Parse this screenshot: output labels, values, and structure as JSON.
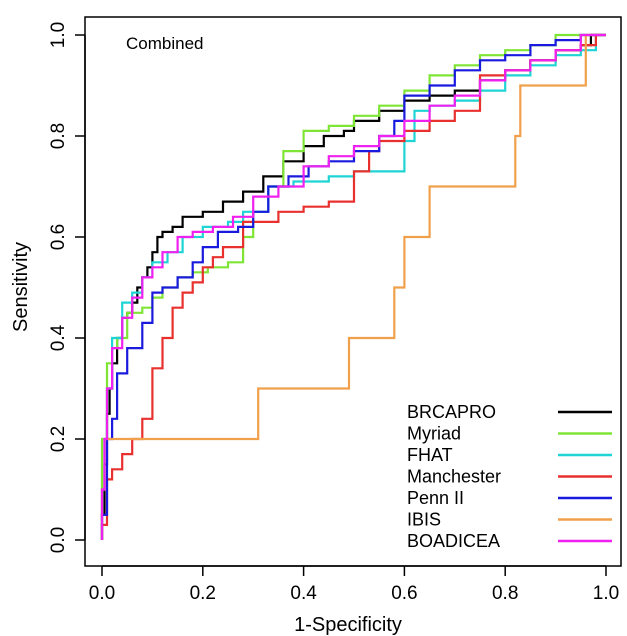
{
  "chart_data": {
    "type": "line",
    "title": "",
    "annotation": "Combined",
    "xlabel": "1-Specificity",
    "ylabel": "Sensitivity",
    "xlim": [
      0,
      1
    ],
    "ylim": [
      0,
      1
    ],
    "xticks": [
      "0.0",
      "0.2",
      "0.4",
      "0.6",
      "0.8",
      "1.0"
    ],
    "yticks": [
      "0.0",
      "0.2",
      "0.4",
      "0.6",
      "0.8",
      "1.0"
    ],
    "grid": false,
    "legend_position": "bottom-right",
    "series": [
      {
        "name": "BRCAPRO",
        "color": "#000000",
        "points": [
          [
            0,
            0
          ],
          [
            0.005,
            0.05
          ],
          [
            0.01,
            0.15
          ],
          [
            0.015,
            0.25
          ],
          [
            0.02,
            0.3
          ],
          [
            0.03,
            0.35
          ],
          [
            0.04,
            0.4
          ],
          [
            0.05,
            0.44
          ],
          [
            0.06,
            0.45
          ],
          [
            0.07,
            0.47
          ],
          [
            0.08,
            0.5
          ],
          [
            0.09,
            0.52
          ],
          [
            0.1,
            0.54
          ],
          [
            0.11,
            0.57
          ],
          [
            0.12,
            0.6
          ],
          [
            0.14,
            0.61
          ],
          [
            0.16,
            0.62
          ],
          [
            0.2,
            0.64
          ],
          [
            0.24,
            0.65
          ],
          [
            0.28,
            0.67
          ],
          [
            0.32,
            0.69
          ],
          [
            0.36,
            0.72
          ],
          [
            0.4,
            0.75
          ],
          [
            0.44,
            0.78
          ],
          [
            0.48,
            0.8
          ],
          [
            0.5,
            0.81
          ],
          [
            0.55,
            0.83
          ],
          [
            0.6,
            0.85
          ],
          [
            0.65,
            0.87
          ],
          [
            0.7,
            0.88
          ],
          [
            0.75,
            0.89
          ],
          [
            0.8,
            0.91
          ],
          [
            0.85,
            0.93
          ],
          [
            0.9,
            0.95
          ],
          [
            0.95,
            0.97
          ],
          [
            0.97,
            0.98
          ],
          [
            1,
            1
          ]
        ]
      },
      {
        "name": "Myriad",
        "color": "#7FE535",
        "points": [
          [
            0,
            0
          ],
          [
            0.01,
            0.2
          ],
          [
            0.02,
            0.35
          ],
          [
            0.03,
            0.38
          ],
          [
            0.05,
            0.4
          ],
          [
            0.08,
            0.45
          ],
          [
            0.1,
            0.46
          ],
          [
            0.12,
            0.48
          ],
          [
            0.15,
            0.5
          ],
          [
            0.18,
            0.52
          ],
          [
            0.21,
            0.53
          ],
          [
            0.25,
            0.54
          ],
          [
            0.28,
            0.55
          ],
          [
            0.3,
            0.6
          ],
          [
            0.33,
            0.65
          ],
          [
            0.36,
            0.7
          ],
          [
            0.4,
            0.77
          ],
          [
            0.45,
            0.81
          ],
          [
            0.5,
            0.82
          ],
          [
            0.55,
            0.84
          ],
          [
            0.6,
            0.86
          ],
          [
            0.65,
            0.89
          ],
          [
            0.7,
            0.92
          ],
          [
            0.75,
            0.94
          ],
          [
            0.8,
            0.96
          ],
          [
            0.85,
            0.97
          ],
          [
            0.9,
            0.98
          ],
          [
            1,
            1
          ]
        ]
      },
      {
        "name": "FHAT",
        "color": "#1FD4D4",
        "points": [
          [
            0,
            0
          ],
          [
            0.005,
            0.1
          ],
          [
            0.01,
            0.2
          ],
          [
            0.02,
            0.3
          ],
          [
            0.04,
            0.4
          ],
          [
            0.06,
            0.47
          ],
          [
            0.08,
            0.49
          ],
          [
            0.1,
            0.52
          ],
          [
            0.13,
            0.55
          ],
          [
            0.16,
            0.57
          ],
          [
            0.2,
            0.6
          ],
          [
            0.25,
            0.62
          ],
          [
            0.28,
            0.63
          ],
          [
            0.33,
            0.65
          ],
          [
            0.38,
            0.7
          ],
          [
            0.45,
            0.71
          ],
          [
            0.5,
            0.72
          ],
          [
            0.55,
            0.73
          ],
          [
            0.6,
            0.73
          ],
          [
            0.62,
            0.79
          ],
          [
            0.65,
            0.85
          ],
          [
            0.7,
            0.86
          ],
          [
            0.75,
            0.87
          ],
          [
            0.8,
            0.89
          ],
          [
            0.85,
            0.92
          ],
          [
            0.9,
            0.94
          ],
          [
            0.95,
            0.96
          ],
          [
            0.98,
            0.97
          ],
          [
            1,
            1
          ]
        ]
      },
      {
        "name": "Manchester",
        "color": "#E8312E",
        "points": [
          [
            0,
            0
          ],
          [
            0.01,
            0.03
          ],
          [
            0.02,
            0.12
          ],
          [
            0.04,
            0.14
          ],
          [
            0.06,
            0.17
          ],
          [
            0.08,
            0.2
          ],
          [
            0.1,
            0.24
          ],
          [
            0.12,
            0.34
          ],
          [
            0.14,
            0.4
          ],
          [
            0.16,
            0.46
          ],
          [
            0.18,
            0.49
          ],
          [
            0.2,
            0.51
          ],
          [
            0.22,
            0.54
          ],
          [
            0.24,
            0.56
          ],
          [
            0.28,
            0.58
          ],
          [
            0.35,
            0.63
          ],
          [
            0.4,
            0.65
          ],
          [
            0.45,
            0.66
          ],
          [
            0.5,
            0.67
          ],
          [
            0.53,
            0.73
          ],
          [
            0.55,
            0.77
          ],
          [
            0.6,
            0.79
          ],
          [
            0.65,
            0.81
          ],
          [
            0.7,
            0.83
          ],
          [
            0.75,
            0.85
          ],
          [
            0.8,
            0.92
          ],
          [
            0.85,
            0.93
          ],
          [
            0.9,
            0.95
          ],
          [
            0.95,
            0.97
          ],
          [
            0.98,
            0.98
          ],
          [
            1,
            1
          ]
        ]
      },
      {
        "name": "Penn II",
        "color": "#1A1ADE",
        "points": [
          [
            0,
            0
          ],
          [
            0.01,
            0.05
          ],
          [
            0.02,
            0.2
          ],
          [
            0.03,
            0.24
          ],
          [
            0.05,
            0.33
          ],
          [
            0.08,
            0.38
          ],
          [
            0.1,
            0.43
          ],
          [
            0.12,
            0.49
          ],
          [
            0.15,
            0.5
          ],
          [
            0.18,
            0.52
          ],
          [
            0.2,
            0.55
          ],
          [
            0.23,
            0.58
          ],
          [
            0.27,
            0.61
          ],
          [
            0.3,
            0.62
          ],
          [
            0.33,
            0.65
          ],
          [
            0.37,
            0.7
          ],
          [
            0.41,
            0.72
          ],
          [
            0.45,
            0.74
          ],
          [
            0.5,
            0.75
          ],
          [
            0.55,
            0.77
          ],
          [
            0.58,
            0.8
          ],
          [
            0.6,
            0.83
          ],
          [
            0.65,
            0.88
          ],
          [
            0.7,
            0.9
          ],
          [
            0.75,
            0.93
          ],
          [
            0.8,
            0.95
          ],
          [
            0.85,
            0.96
          ],
          [
            0.9,
            0.98
          ],
          [
            0.95,
            0.99
          ],
          [
            1,
            1
          ]
        ]
      },
      {
        "name": "IBIS",
        "color": "#F0A04A",
        "points": [
          [
            0,
            0
          ],
          [
            0.005,
            0.1
          ],
          [
            0.01,
            0.2
          ],
          [
            0.05,
            0.2
          ],
          [
            0.1,
            0.2
          ],
          [
            0.31,
            0.2
          ],
          [
            0.31,
            0.3
          ],
          [
            0.49,
            0.3
          ],
          [
            0.49,
            0.4
          ],
          [
            0.58,
            0.4
          ],
          [
            0.58,
            0.5
          ],
          [
            0.6,
            0.5
          ],
          [
            0.6,
            0.6
          ],
          [
            0.65,
            0.6
          ],
          [
            0.65,
            0.7
          ],
          [
            0.82,
            0.7
          ],
          [
            0.82,
            0.8
          ],
          [
            0.83,
            0.8
          ],
          [
            0.83,
            0.9
          ],
          [
            0.96,
            0.9
          ],
          [
            0.96,
            1.0
          ],
          [
            1,
            1
          ]
        ]
      },
      {
        "name": "BOADICEA",
        "color": "#F020F0",
        "points": [
          [
            0,
            0
          ],
          [
            0.005,
            0.1
          ],
          [
            0.01,
            0.2
          ],
          [
            0.02,
            0.3
          ],
          [
            0.04,
            0.38
          ],
          [
            0.06,
            0.44
          ],
          [
            0.08,
            0.48
          ],
          [
            0.1,
            0.52
          ],
          [
            0.12,
            0.54
          ],
          [
            0.15,
            0.57
          ],
          [
            0.18,
            0.6
          ],
          [
            0.22,
            0.61
          ],
          [
            0.26,
            0.62
          ],
          [
            0.3,
            0.64
          ],
          [
            0.35,
            0.68
          ],
          [
            0.4,
            0.7
          ],
          [
            0.45,
            0.74
          ],
          [
            0.5,
            0.76
          ],
          [
            0.55,
            0.78
          ],
          [
            0.6,
            0.8
          ],
          [
            0.65,
            0.83
          ],
          [
            0.7,
            0.86
          ],
          [
            0.75,
            0.88
          ],
          [
            0.8,
            0.91
          ],
          [
            0.85,
            0.93
          ],
          [
            0.9,
            0.95
          ],
          [
            0.95,
            0.97
          ],
          [
            1,
            1
          ]
        ]
      }
    ]
  }
}
